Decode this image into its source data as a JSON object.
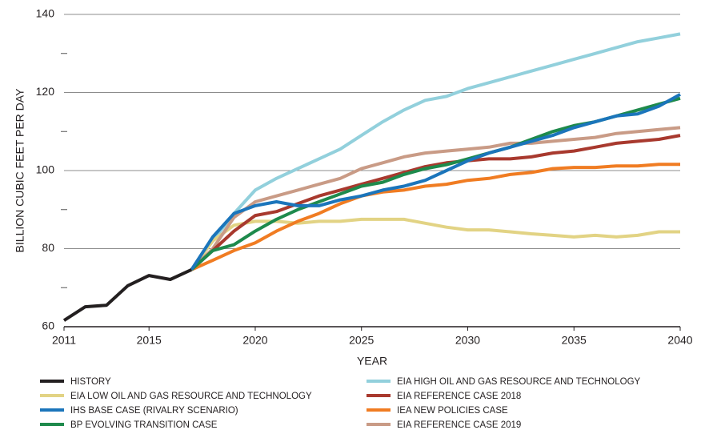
{
  "chart_data": {
    "type": "line",
    "y_label": "BILLION CUBIC FEET PER DAY",
    "x_label": "YEAR",
    "x": [
      2011,
      2012,
      2013,
      2014,
      2015,
      2016,
      2017,
      2018,
      2019,
      2020,
      2021,
      2022,
      2023,
      2024,
      2025,
      2026,
      2027,
      2028,
      2029,
      2030,
      2031,
      2032,
      2033,
      2034,
      2035,
      2036,
      2037,
      2038,
      2039,
      2040
    ],
    "xlim": [
      2011,
      2040
    ],
    "xticks": [
      2011,
      2015,
      2020,
      2025,
      2030,
      2035,
      2040
    ],
    "ylim": [
      60,
      140
    ],
    "yticks": [
      60,
      80,
      100,
      120,
      140
    ],
    "minor_yticks": [
      70,
      90,
      110,
      130
    ],
    "grid": true,
    "series": [
      {
        "name": "HISTORY",
        "color": "#231f20",
        "values": [
          61.6,
          65.1,
          65.5,
          70.5,
          73.1,
          72.1,
          74.6,
          null,
          null,
          null,
          null,
          null,
          null,
          null,
          null,
          null,
          null,
          null,
          null,
          null,
          null,
          null,
          null,
          null,
          null,
          null,
          null,
          null,
          null,
          null
        ]
      },
      {
        "name": "EIA LOW OIL AND GAS RESOURCE AND TECHNOLOGY",
        "color": "#e2d384",
        "values": [
          null,
          null,
          null,
          null,
          null,
          null,
          74.6,
          82,
          86,
          87,
          87,
          86.5,
          87,
          87,
          87.5,
          87.5,
          87.5,
          86.5,
          85.5,
          84.8,
          84.8,
          84.3,
          83.8,
          83.4,
          83,
          83.4,
          83,
          83.4,
          84.3,
          84.3
        ]
      },
      {
        "name": "IHS BASE CASE (RIVALRY SCENARIO)",
        "color": "#1b75bb",
        "values": [
          null,
          null,
          null,
          null,
          null,
          null,
          74.6,
          83,
          89,
          91,
          92,
          91,
          91,
          92.5,
          93.5,
          95,
          96,
          97.5,
          100,
          102.5,
          104.5,
          106,
          107.5,
          109,
          111,
          112.5,
          114,
          114.5,
          116.5,
          119.5
        ]
      },
      {
        "name": "BP EVOLVING TRANSITION CASE",
        "color": "#1e8a4c",
        "values": [
          null,
          null,
          null,
          null,
          null,
          null,
          74.6,
          79.5,
          81,
          84.5,
          87.5,
          90,
          92,
          94,
          96,
          97,
          99,
          100.5,
          101.5,
          103,
          104.5,
          106,
          108,
          110,
          111.5,
          112.5,
          114,
          115.5,
          117,
          118.5
        ]
      },
      {
        "name": "EIA HIGH OIL AND GAS RESOURCE AND TECHNOLOGY",
        "color": "#92d0dc",
        "values": [
          null,
          null,
          null,
          null,
          null,
          null,
          74.6,
          82,
          89,
          95,
          98,
          100.5,
          103,
          105.5,
          109,
          112.5,
          115.5,
          118,
          119,
          121,
          122.5,
          124,
          125.5,
          127,
          128.5,
          130,
          131.5,
          133,
          134,
          135
        ]
      },
      {
        "name": "EIA REFERENCE CASE 2018",
        "color": "#a8392e",
        "values": [
          null,
          null,
          null,
          null,
          null,
          null,
          74.6,
          79.5,
          84.5,
          88.5,
          89.5,
          91.5,
          93.5,
          95,
          96.5,
          98,
          99.5,
          101,
          102,
          102.5,
          103,
          103,
          103.5,
          104.5,
          105,
          106,
          107,
          107.5,
          108,
          109
        ]
      },
      {
        "name": "IEA NEW POLICIES CASE",
        "color": "#f07c22",
        "values": [
          null,
          null,
          null,
          null,
          null,
          null,
          74.6,
          77,
          79.5,
          81.5,
          84.5,
          87,
          89,
          91.5,
          93.5,
          94.5,
          95,
          96,
          96.5,
          97.5,
          98,
          99,
          99.5,
          100.5,
          100.8,
          100.8,
          101.2,
          101.2,
          101.6,
          101.6
        ]
      },
      {
        "name": "EIA REFERENCE CASE 2019",
        "color": "#c99b86",
        "values": [
          null,
          null,
          null,
          null,
          null,
          null,
          74.6,
          80,
          88,
          92,
          93.5,
          95,
          96.5,
          98,
          100.5,
          102,
          103.5,
          104.5,
          105,
          105.5,
          106,
          107,
          107,
          107.5,
          108,
          108.5,
          109.5,
          110,
          110.5,
          111
        ]
      }
    ]
  }
}
